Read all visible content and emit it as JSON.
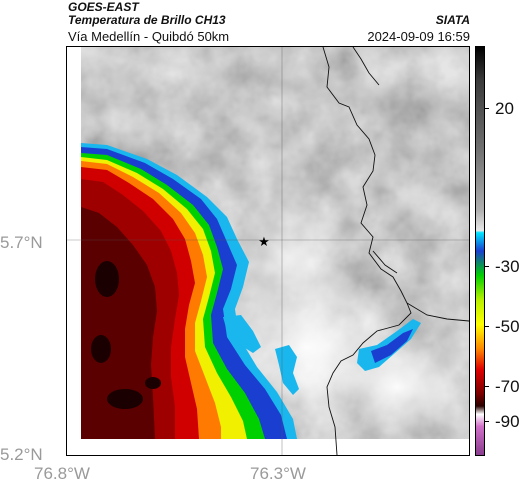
{
  "header": {
    "product": "GOES-EAST",
    "channel": "Temperatura de Brillo CH13",
    "region": "Vía Medellín - Quibdó 50km",
    "source": "SIATA",
    "timestamp": "2024-09-09 16:59"
  },
  "axes": {
    "lat_ticks": [
      "5.7°N",
      "5.2°N"
    ],
    "lon_ticks": [
      "76.8°W",
      "76.3°W"
    ]
  },
  "colorbar": {
    "ticks": [
      "20",
      "-30",
      "-50",
      "-70",
      "-90"
    ],
    "colors": [
      "#8a3d8e",
      "#d070c8",
      "#ffffff",
      "#7a0000",
      "#ff0000",
      "#ffff00",
      "#00d000",
      "#00aaff",
      "#000000",
      "#ffffff"
    ]
  },
  "map": {
    "marker_icon": "star-icon",
    "colors": {
      "cold_core": "#5a0000",
      "red": "#b80000",
      "orange": "#ff7a00",
      "yellow": "#f0f000",
      "green": "#00d000",
      "blue": "#1a3fd0",
      "cyan": "#19b7ee",
      "clear": "#ffffff",
      "warm_gray": "#9a9a9a",
      "border_line": "#000000"
    }
  }
}
